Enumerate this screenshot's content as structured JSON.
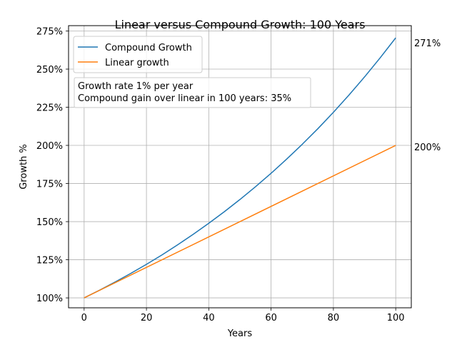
{
  "chart_data": {
    "type": "line",
    "title": "Linear versus Compound Growth: 100 Years",
    "xlabel": "Years",
    "ylabel": "Growth %",
    "xlim": [
      -5,
      105
    ],
    "ylim": [
      93.5,
      278.5
    ],
    "x_ticks": [
      0,
      20,
      40,
      60,
      80,
      100
    ],
    "x_tick_labels": [
      "0",
      "20",
      "40",
      "60",
      "80",
      "100"
    ],
    "y_ticks": [
      100,
      125,
      150,
      175,
      200,
      225,
      250,
      275
    ],
    "y_tick_labels": [
      "100%",
      "125%",
      "150%",
      "175%",
      "200%",
      "225%",
      "250%",
      "275%"
    ],
    "grid": true,
    "legend": {
      "position": "top-left"
    },
    "series": [
      {
        "name": "Compound Growth",
        "color": "#1f77b4",
        "x": [
          0,
          5,
          10,
          15,
          20,
          25,
          30,
          35,
          40,
          45,
          50,
          55,
          60,
          65,
          70,
          75,
          80,
          85,
          90,
          95,
          100
        ],
        "values": [
          100,
          105.1,
          110.5,
          116.1,
          122.0,
          128.2,
          134.8,
          141.7,
          148.9,
          156.5,
          164.5,
          172.9,
          181.7,
          191.0,
          200.7,
          210.9,
          221.7,
          233.0,
          244.9,
          257.4,
          270.5
        ],
        "end_label": "271%"
      },
      {
        "name": "Linear growth",
        "color": "#ff7f0e",
        "x": [
          0,
          100
        ],
        "values": [
          100,
          200
        ],
        "end_label": "200%"
      }
    ],
    "annotation": {
      "lines": [
        "Growth rate 1% per year",
        "Compound gain over linear in 100 years: 35%"
      ]
    }
  }
}
